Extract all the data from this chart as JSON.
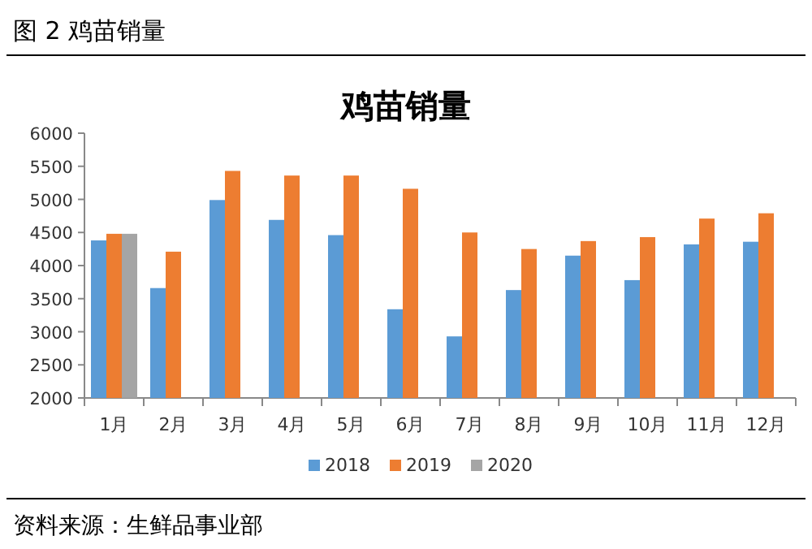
{
  "chart_data": {
    "type": "bar",
    "title": "鸡苗销量",
    "categories": [
      "1月",
      "2月",
      "3月",
      "4月",
      "5月",
      "6月",
      "7月",
      "8月",
      "9月",
      "10月",
      "11月",
      "12月"
    ],
    "series": [
      {
        "name": "2018",
        "color": "#5b9bd5",
        "values": [
          4380,
          3660,
          4990,
          4690,
          4460,
          3340,
          2930,
          3630,
          4150,
          3780,
          4320,
          4360
        ]
      },
      {
        "name": "2019",
        "color": "#ed7d31",
        "values": [
          4480,
          4210,
          5430,
          5360,
          5360,
          5160,
          4500,
          4250,
          4370,
          4430,
          4710,
          4790
        ]
      },
      {
        "name": "2020",
        "color": "#a5a5a5",
        "values": [
          4480,
          null,
          null,
          null,
          null,
          null,
          null,
          null,
          null,
          null,
          null,
          null
        ]
      }
    ],
    "ylim": [
      2000,
      6000
    ],
    "yticks": [
      2000,
      2500,
      3000,
      3500,
      4000,
      4500,
      5000,
      5500,
      6000
    ],
    "legend": "bottom",
    "annotations": [
      "图 2  鸡苗销量",
      "资料来源：生鲜品事业部"
    ]
  }
}
